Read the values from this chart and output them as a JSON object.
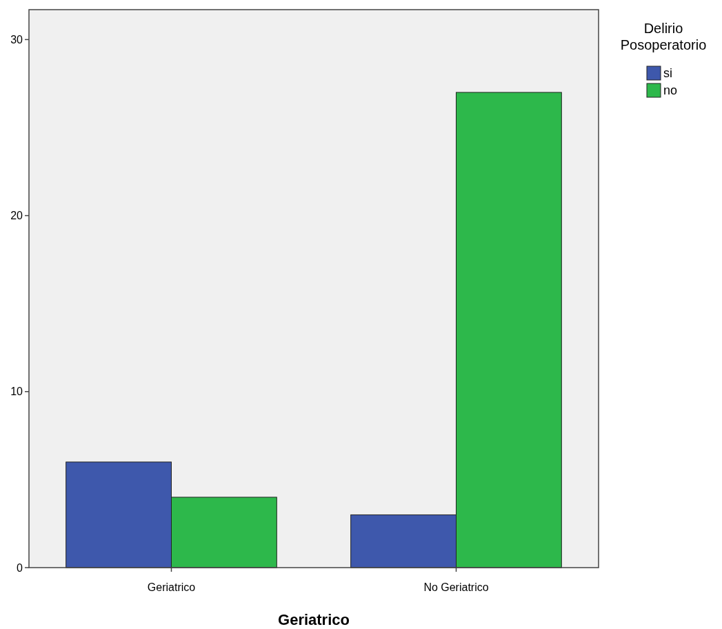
{
  "chart_data": {
    "type": "bar",
    "xlabel": "Geriatrico",
    "legend_title": "Delirio Posoperatorio",
    "categories": [
      "Geriatrico",
      "No Geriatrico"
    ],
    "series": [
      {
        "name": "si",
        "color": "#3e58ac",
        "values": [
          6,
          3
        ]
      },
      {
        "name": "no",
        "color": "#2db84b",
        "values": [
          4,
          27
        ]
      }
    ],
    "ylim": [
      0,
      31.7
    ],
    "yticks": [
      0,
      10,
      20,
      30
    ],
    "grid": false,
    "legend": "top right"
  }
}
